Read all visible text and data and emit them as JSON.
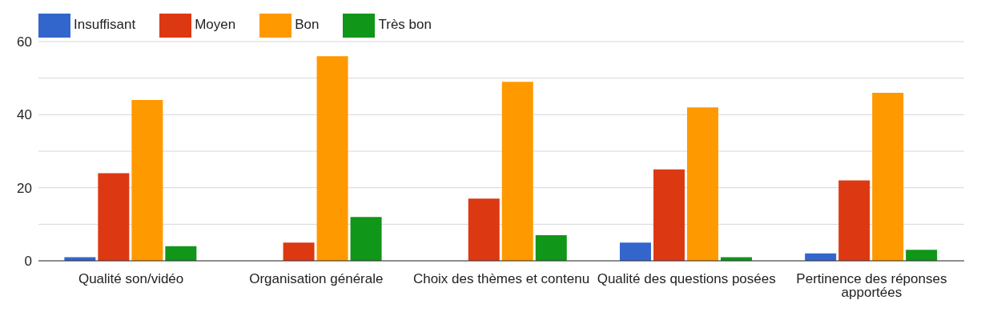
{
  "chart_data": {
    "type": "bar",
    "categories": [
      "Qualité son/vidéo",
      "Organisation générale",
      "Choix des thèmes et contenu",
      "Qualité des questions posées",
      "Pertinence des réponses apportées"
    ],
    "series": [
      {
        "name": "Insuffisant",
        "color": "#3366cc",
        "values": [
          1,
          0,
          0,
          5,
          2
        ]
      },
      {
        "name": "Moyen",
        "color": "#dc3912",
        "values": [
          24,
          5,
          17,
          25,
          22
        ]
      },
      {
        "name": "Bon",
        "color": "#ff9900",
        "values": [
          44,
          56,
          49,
          42,
          46
        ]
      },
      {
        "name": "Très bon",
        "color": "#109618",
        "values": [
          4,
          12,
          7,
          1,
          3
        ]
      }
    ],
    "ylim": [
      0,
      60
    ],
    "yticks": [
      0,
      {
        "value": 10,
        "label": null
      },
      20,
      {
        "value": 30,
        "label": null
      },
      40,
      {
        "value": 50,
        "label": null
      },
      60
    ],
    "grid": "y",
    "legend": "top left"
  }
}
